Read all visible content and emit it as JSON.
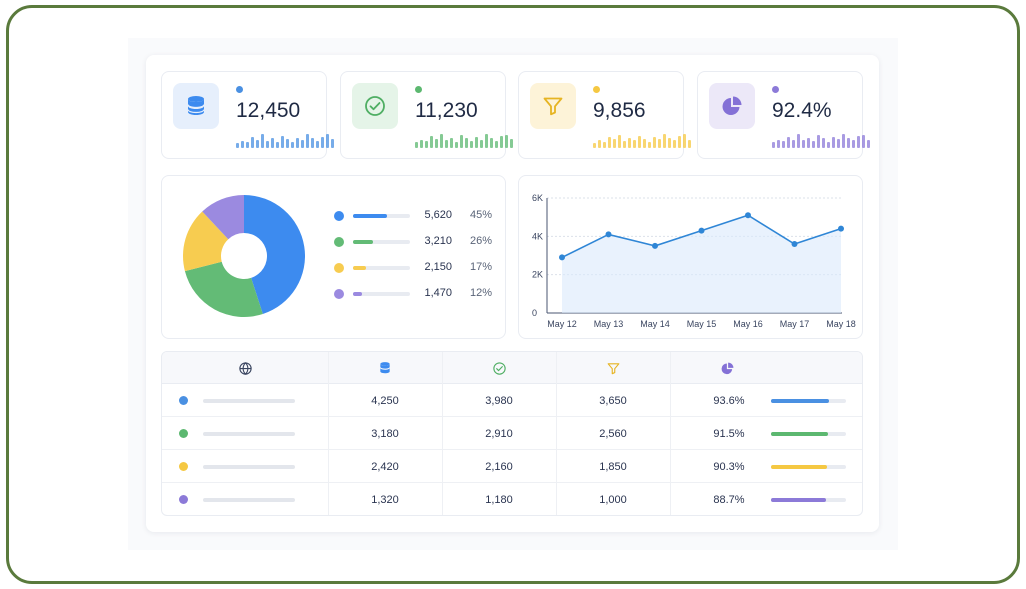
{
  "colors": {
    "blue": "#4a90e2",
    "green": "#5cb870",
    "yellow": "#f5c842",
    "purple": "#8c7ad8"
  },
  "kpis": [
    {
      "value": "12,450",
      "icon": "database-icon",
      "color": "#4a90e2",
      "icon_bg": "#e6effc",
      "spark": [
        0.3,
        0.45,
        0.4,
        0.7,
        0.5,
        0.85,
        0.45,
        0.6,
        0.4,
        0.75,
        0.55,
        0.4,
        0.65,
        0.5,
        0.9,
        0.6,
        0.45,
        0.7,
        0.85,
        0.55
      ]
    },
    {
      "value": "11,230",
      "icon": "check-circle-icon",
      "color": "#5cb870",
      "icon_bg": "#e5f4e8",
      "spark": [
        0.35,
        0.5,
        0.45,
        0.75,
        0.55,
        0.85,
        0.5,
        0.65,
        0.4,
        0.8,
        0.6,
        0.45,
        0.7,
        0.5,
        0.9,
        0.65,
        0.45,
        0.75,
        0.8,
        0.55
      ]
    },
    {
      "value": "9,856",
      "icon": "filter-icon",
      "color": "#f5c842",
      "icon_bg": "#fdf3d8",
      "spark": [
        0.3,
        0.5,
        0.4,
        0.7,
        0.55,
        0.8,
        0.45,
        0.6,
        0.5,
        0.75,
        0.55,
        0.4,
        0.7,
        0.55,
        0.9,
        0.6,
        0.5,
        0.75,
        0.85,
        0.5
      ]
    },
    {
      "value": "92.4%",
      "icon": "pie-chart-icon",
      "color": "#8c7ad8",
      "icon_bg": "#ece8f8",
      "spark": [
        0.35,
        0.5,
        0.45,
        0.7,
        0.5,
        0.85,
        0.5,
        0.65,
        0.45,
        0.8,
        0.6,
        0.4,
        0.7,
        0.55,
        0.9,
        0.6,
        0.5,
        0.75,
        0.8,
        0.5
      ]
    }
  ],
  "donut": {
    "segments": [
      {
        "value": "5,620",
        "pct": "45%",
        "fraction": 0.45,
        "color": "#3d8bef"
      },
      {
        "value": "3,210",
        "pct": "26%",
        "fraction": 0.26,
        "color": "#63bb76"
      },
      {
        "value": "2,150",
        "pct": "17%",
        "fraction": 0.17,
        "color": "#f7cc50"
      },
      {
        "value": "1,470",
        "pct": "12%",
        "fraction": 0.12,
        "color": "#9b8ae0"
      }
    ]
  },
  "chart_data": {
    "type": "line",
    "x": [
      "May 12",
      "May 13",
      "May 14",
      "May 15",
      "May 16",
      "May 17",
      "May 18"
    ],
    "series": [
      {
        "values": [
          2900,
          4100,
          3500,
          4300,
          5100,
          3600,
          4400
        ]
      }
    ],
    "yticks": [
      "0",
      "2K",
      "4K",
      "6K"
    ],
    "ylim": [
      0,
      6000
    ],
    "grid": true,
    "color": "#2f86d6"
  },
  "table": {
    "header_icons": [
      "globe-icon",
      "database-icon",
      "check-circle-icon",
      "filter-icon",
      "pie-chart-icon"
    ],
    "rows": [
      {
        "color": "#4a90e2",
        "c1": "4,250",
        "c2": "3,980",
        "c3": "3,650",
        "pct": "93.6%",
        "fraction": 0.936
      },
      {
        "color": "#5cb870",
        "c1": "3,180",
        "c2": "2,910",
        "c3": "2,560",
        "pct": "91.5%",
        "fraction": 0.915
      },
      {
        "color": "#f5c842",
        "c1": "2,420",
        "c2": "2,160",
        "c3": "1,850",
        "pct": "90.3%",
        "fraction": 0.903
      },
      {
        "color": "#8c7ad8",
        "c1": "1,320",
        "c2": "1,180",
        "c3": "1,000",
        "pct": "88.7%",
        "fraction": 0.887
      }
    ]
  }
}
